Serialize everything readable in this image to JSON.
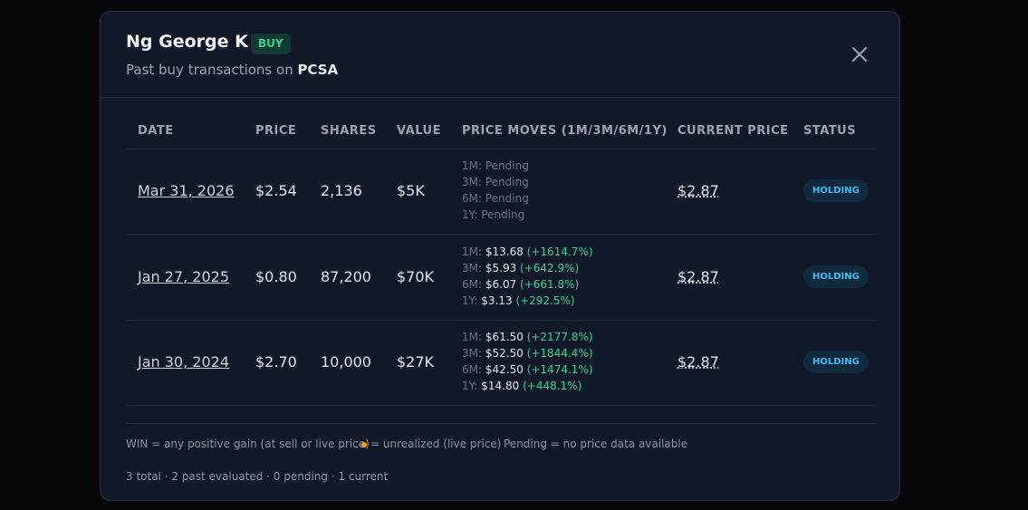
{
  "modal": {
    "title": "Ng George K",
    "badge": "BUY",
    "subtitle": "Past buy transactions on",
    "ticker": "PCSA",
    "table": {
      "headers": [
        "DATE",
        "PRICE",
        "SHARES",
        "VALUE",
        "PRICE MOVES (1M/3M/6M/1Y)",
        "CURRENT PRICE",
        "STATUS"
      ],
      "rows": [
        {
          "date": "Mar 31, 2026",
          "price": "$2.54",
          "shares": "2,136",
          "value": "$5K",
          "moves": [
            {
              "period": "1M:",
              "price": "Pending"
            },
            {
              "period": "3M:",
              "price": "Pending"
            },
            {
              "period": "6M:",
              "price": "Pending"
            },
            {
              "period": "1Y:",
              "price": "Pending"
            }
          ],
          "current": "$2.87",
          "status": "HOLDING"
        },
        {
          "date": "Jan 27, 2025",
          "price": "$0.80",
          "shares": "87,200",
          "value": "$70K",
          "moves": [
            {
              "period": "1M:",
              "price": "$13.68",
              "change": "(+1614.7%)"
            },
            {
              "period": "3M:",
              "price": "$5.93",
              "change": "(+642.9%)"
            },
            {
              "period": "6M:",
              "price": "$6.07",
              "change": "(+661.8%)"
            },
            {
              "period": "1Y:",
              "price": "$3.13",
              "change": "(+292.5%)"
            }
          ],
          "current": "$2.87",
          "status": "HOLDING"
        },
        {
          "date": "Jan 30, 2024",
          "price": "$2.70",
          "shares": "10,000",
          "value": "$27K",
          "moves": [
            {
              "period": "1M:",
              "price": "$61.50",
              "change": "(+2177.8%)"
            },
            {
              "period": "3M:",
              "price": "$52.50",
              "change": "(+1844.4%)"
            },
            {
              "period": "6M:",
              "price": "$42.50",
              "change": "(+1474.1%)"
            },
            {
              "period": "1Y:",
              "price": "$14.80",
              "change": "(+448.1%)"
            }
          ],
          "current": "$2.87",
          "status": "HOLDING"
        }
      ]
    },
    "legend": [
      "WIN = any positive gain (at sell or live price)",
      "= unrealized (live price)",
      "Pending = no price data available"
    ],
    "summary": "3 total · 2 past evaluated · 0 pending · 1 current"
  }
}
